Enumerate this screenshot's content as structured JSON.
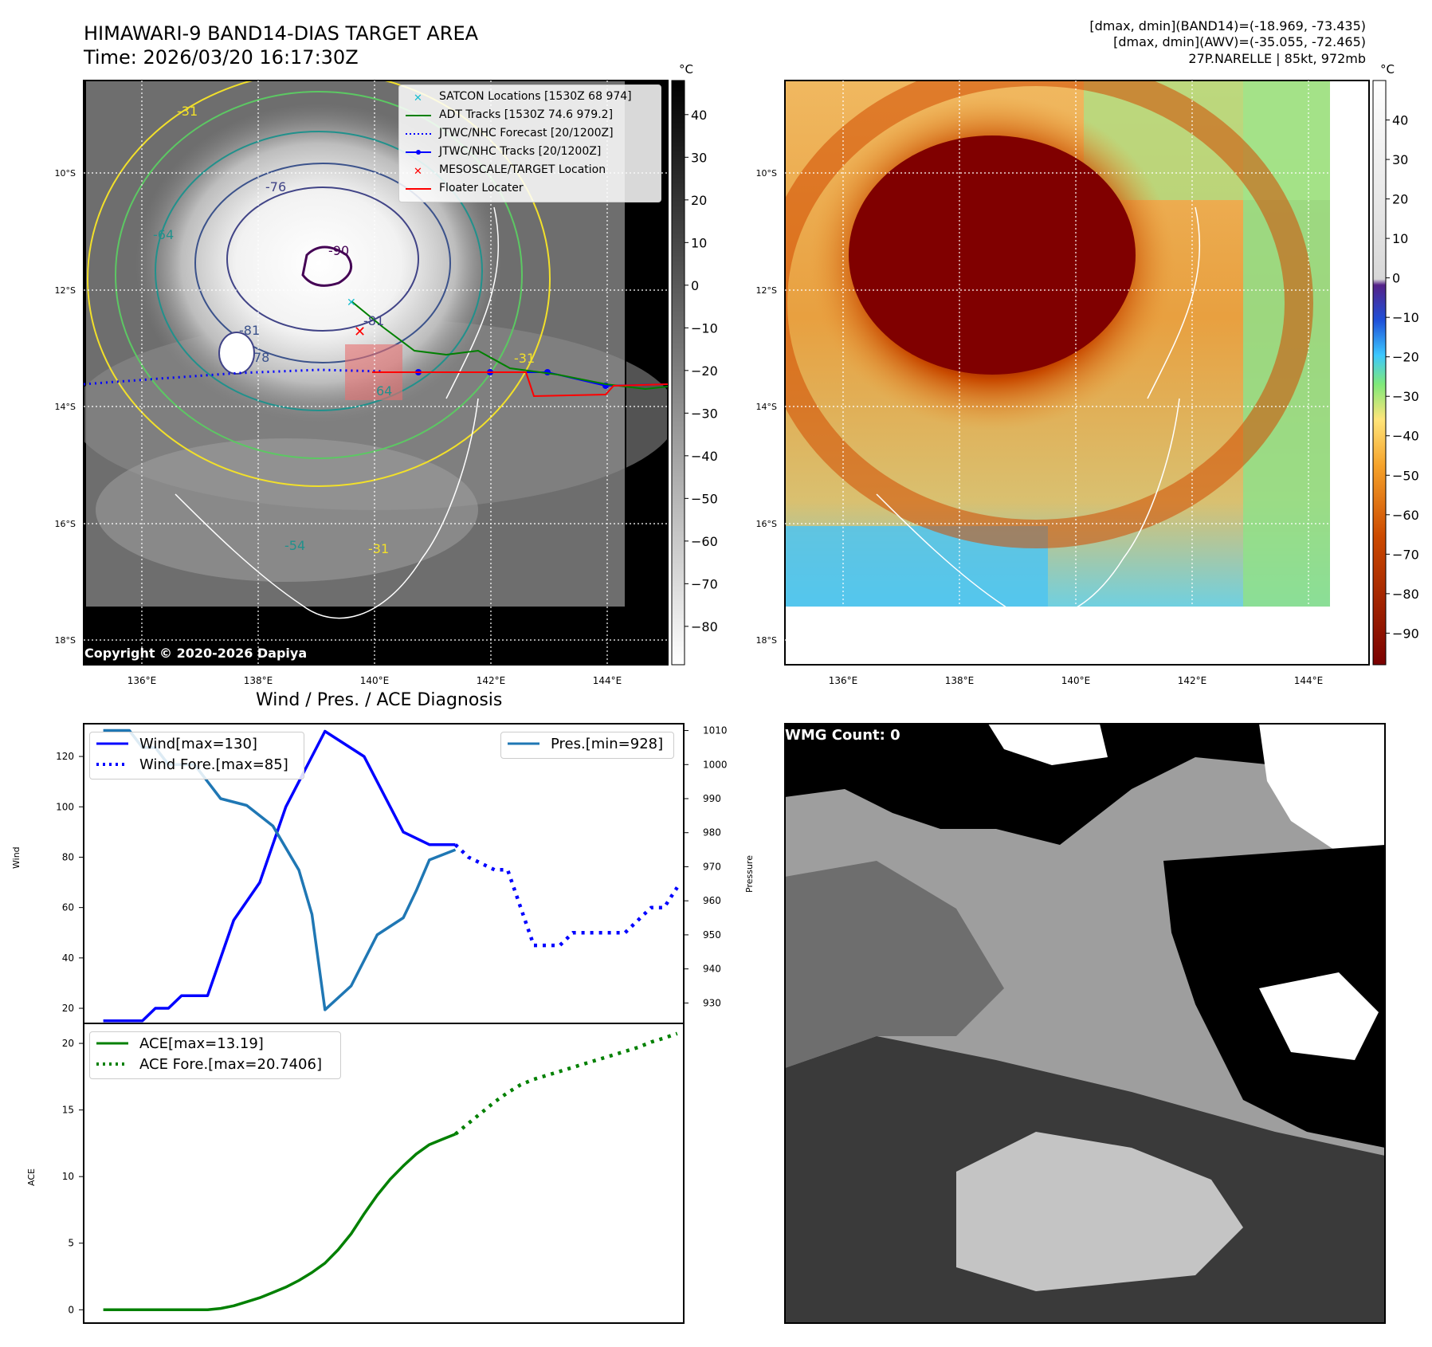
{
  "header": {
    "title_line1": "HIMAWARI-9 BAND14-DIAS TARGET AREA",
    "title_line2": "Time: 2026/03/20 16:17:30Z",
    "info_line1": "[dmax, dmin](BAND14)=(-18.969, -73.435)",
    "info_line2": "[dmax, dmin](AWV)=(-35.055, -72.465)",
    "info_line3": "27P.NARELLE | 85kt, 972mb"
  },
  "map_axes": {
    "lon_ticks": [
      "136°E",
      "138°E",
      "140°E",
      "142°E",
      "144°E"
    ],
    "lat_ticks": [
      "10°S",
      "12°S",
      "14°S",
      "16°S",
      "18°S"
    ]
  },
  "ir_colorbar": {
    "unit": "°C",
    "ticks": [
      "40",
      "30",
      "20",
      "10",
      "0",
      "−10",
      "−20",
      "−30",
      "−40",
      "−50",
      "−60",
      "−70",
      "−80"
    ]
  },
  "awv_colorbar": {
    "unit": "°C",
    "ticks": [
      "40",
      "30",
      "20",
      "10",
      "0",
      "−10",
      "−20",
      "−30",
      "−40",
      "−50",
      "−60",
      "−70",
      "−80",
      "−90"
    ]
  },
  "contour_labels": [
    "-76",
    "-90",
    "-81",
    "-81",
    "-64",
    "-54",
    "-31",
    "-31",
    "-31",
    "64",
    "78"
  ],
  "map_legend": {
    "items": [
      {
        "label": "SATCON Locations [1530Z 68 974]",
        "color": "#17becf",
        "marker": "x"
      },
      {
        "label": "ADT Tracks [1530Z 74.6 979.2]",
        "color": "#008000",
        "marker": "line"
      },
      {
        "label": "JTWC/NHC Forecast [20/1200Z]",
        "color": "#0000ff",
        "marker": "dotted"
      },
      {
        "label": "JTWC/NHC Tracks [20/1200Z]",
        "color": "#0000ff",
        "marker": "line-dot"
      },
      {
        "label": "MESOSCALE/TARGET Location",
        "color": "#ff0000",
        "marker": "x"
      },
      {
        "label": "Floater Locater",
        "color": "#ff0000",
        "marker": "line"
      }
    ]
  },
  "copyright": "Copyright © 2020-2026 Dapiya",
  "diagnosis_title": "Wind / Pres. / ACE Diagnosis",
  "wmg_label": "WMG Count: 0",
  "colors": {
    "wind": "#0000ff",
    "pressure": "#1f77b4",
    "ace": "#008000",
    "track_blue": "#0000ff",
    "adt_green": "#008000",
    "satcon": "#17becf",
    "floater": "#ff0000"
  },
  "chart_data": [
    {
      "type": "line",
      "title": "Wind / Pres. / ACE Diagnosis",
      "ylabel": "Wind",
      "y2label": "Pressure",
      "ylim": [
        14,
        133
      ],
      "y2lim": [
        924,
        1012
      ],
      "yticks": [
        20,
        40,
        60,
        80,
        100,
        120
      ],
      "y2ticks": [
        930,
        940,
        950,
        960,
        970,
        980,
        990,
        1000,
        1010
      ],
      "xlim": [
        -1.5,
        44.5
      ],
      "series": [
        {
          "name": "Wind[max=130]",
          "axis": "left",
          "style": "solid",
          "x": [
            0,
            3,
            4,
            5,
            6,
            8,
            10,
            12,
            14,
            17,
            20,
            22,
            23,
            25,
            26,
            27
          ],
          "values": [
            15,
            15,
            20,
            20,
            25,
            25,
            55,
            70,
            100,
            130,
            120,
            100,
            90,
            85,
            85,
            85
          ]
        },
        {
          "name": "Wind Fore.[max=85]",
          "axis": "left",
          "style": "dotted",
          "x": [
            27,
            28,
            30,
            31,
            33,
            35,
            36,
            38,
            40,
            42,
            43,
            44
          ],
          "values": [
            85,
            80,
            75,
            75,
            45,
            45,
            50,
            50,
            50,
            60,
            60,
            68
          ]
        },
        {
          "name": "Pres.[min=928]",
          "axis": "right",
          "style": "solid",
          "x": [
            0,
            2,
            3,
            4,
            5,
            7,
            9,
            11,
            13,
            15,
            16,
            17,
            19,
            21,
            23,
            24,
            25,
            27
          ],
          "values": [
            1010,
            1010,
            1005,
            1005,
            1000,
            1000,
            990,
            988,
            982,
            969,
            956,
            928,
            935,
            950,
            955,
            963,
            972,
            975
          ]
        }
      ]
    },
    {
      "type": "line",
      "ylabel": "ACE",
      "ylim": [
        -1,
        21.5
      ],
      "yticks": [
        0,
        5,
        10,
        15,
        20
      ],
      "xlim": [
        -1.5,
        44.5
      ],
      "series": [
        {
          "name": "ACE[max=13.19]",
          "style": "solid",
          "x": [
            0,
            4,
            8,
            9,
            10,
            11,
            12,
            13,
            14,
            15,
            16,
            17,
            18,
            19,
            20,
            21,
            22,
            23,
            24,
            25,
            26,
            27
          ],
          "values": [
            0,
            0,
            0,
            0.1,
            0.3,
            0.6,
            0.9,
            1.3,
            1.7,
            2.2,
            2.8,
            3.5,
            4.5,
            5.7,
            7.2,
            8.6,
            9.8,
            10.8,
            11.7,
            12.4,
            12.8,
            13.19
          ]
        },
        {
          "name": "ACE Fore.[max=20.7406]",
          "style": "dotted",
          "x": [
            27,
            28,
            29,
            30,
            31,
            32,
            33,
            34,
            35,
            36,
            37,
            38,
            39,
            40,
            41,
            42,
            43,
            44
          ],
          "values": [
            13.19,
            14.0,
            14.8,
            15.6,
            16.3,
            16.9,
            17.3,
            17.6,
            17.9,
            18.2,
            18.5,
            18.8,
            19.1,
            19.4,
            19.7,
            20.1,
            20.4,
            20.74
          ]
        }
      ]
    }
  ]
}
